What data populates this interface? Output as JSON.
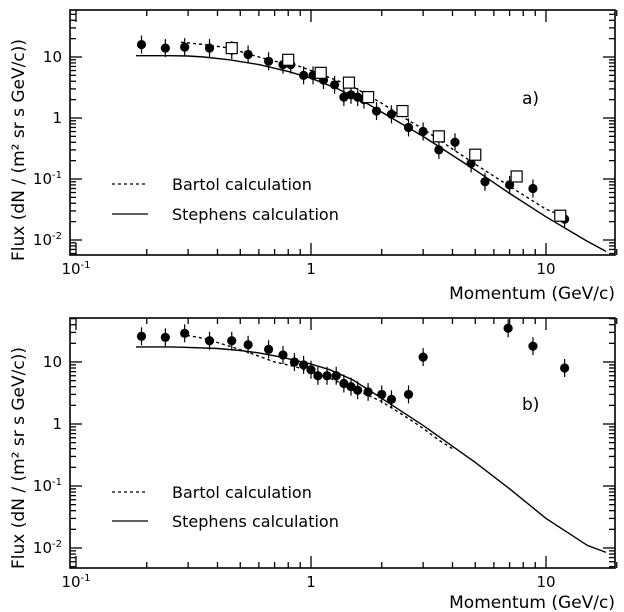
{
  "chart_data": [
    {
      "type": "scatter",
      "panel_label": "a)",
      "xlabel": "Momentum (GeV/c)",
      "ylabel": "Flux (dN / (m² sr s GeV/c))",
      "xscale": "log",
      "yscale": "log",
      "xlim": [
        0.1,
        20
      ],
      "ylim": [
        0.01,
        50
      ],
      "x_ticks": [
        "10-1",
        "1",
        "10"
      ],
      "y_ticks": [
        "10-2",
        "10-1",
        "1",
        "10"
      ],
      "legend": {
        "placement": "bottom-left",
        "entries": [
          {
            "label": "Bartol calculation",
            "style": "dashed"
          },
          {
            "label": "Stephens calculation",
            "style": "solid"
          }
        ]
      },
      "series": [
        {
          "name": "Bartol calculation",
          "kind": "line",
          "style": "dashed",
          "x": [
            0.28,
            0.35,
            0.45,
            0.55,
            0.7,
            0.85,
            1.0,
            1.2,
            1.5,
            2.0,
            2.5,
            3.0,
            4.0,
            5.0,
            7.0,
            10.0,
            12.0
          ],
          "y": [
            17.5,
            16.0,
            14.0,
            11.0,
            8.5,
            7.5,
            6.0,
            4.6,
            3.3,
            1.75,
            1.0,
            0.66,
            0.31,
            0.175,
            0.076,
            0.032,
            0.024
          ]
        },
        {
          "name": "Stephens calculation",
          "kind": "line",
          "style": "solid",
          "x": [
            0.18,
            0.25,
            0.3,
            0.35,
            0.45,
            0.6,
            0.8,
            1.0,
            1.3,
            1.7,
            2.0,
            3.0,
            5.0,
            7.0,
            10.0,
            15.0,
            18.0
          ],
          "y": [
            10.5,
            10.5,
            10.4,
            10.0,
            9.0,
            7.5,
            5.8,
            4.5,
            3.0,
            1.8,
            1.25,
            0.5,
            0.14,
            0.058,
            0.024,
            0.0095,
            0.0065
          ]
        },
        {
          "kind": "points",
          "marker": "filled-circle",
          "x": [
            0.19,
            0.24,
            0.29,
            0.37,
            0.46,
            0.54,
            0.66,
            0.76,
            0.82,
            0.93,
            1.02,
            1.13,
            1.26,
            1.38,
            1.48,
            1.58,
            1.68,
            1.9,
            2.2,
            2.6,
            3.0,
            3.5,
            4.1,
            4.8,
            5.5,
            7.0,
            8.8,
            12.0
          ],
          "y": [
            16,
            14,
            14.5,
            14,
            13,
            11,
            8.5,
            7.5,
            7.5,
            5.0,
            5.0,
            4.2,
            3.5,
            2.2,
            2.4,
            2.2,
            2.0,
            1.3,
            1.15,
            0.7,
            0.6,
            0.3,
            0.4,
            0.18,
            0.09,
            0.08,
            0.07,
            0.022
          ]
        },
        {
          "kind": "points",
          "marker": "open-square",
          "x": [
            0.46,
            0.8,
            1.1,
            1.45,
            1.75,
            2.45,
            3.5,
            5.0,
            7.5,
            11.5
          ],
          "y": [
            14,
            9,
            5.5,
            3.8,
            2.2,
            1.3,
            0.5,
            0.25,
            0.11,
            0.025
          ]
        }
      ]
    },
    {
      "type": "scatter",
      "panel_label": "b)",
      "xlabel": "Momentum (GeV/c)",
      "ylabel": "Flux (dN / (m² sr s GeV/c))",
      "xscale": "log",
      "yscale": "log",
      "xlim": [
        0.1,
        20
      ],
      "ylim": [
        0.01,
        50
      ],
      "x_ticks": [
        "10-1",
        "1",
        "10"
      ],
      "y_ticks": [
        "10-2",
        "10-1",
        "1",
        "10"
      ],
      "legend": {
        "placement": "bottom-left",
        "entries": [
          {
            "label": "Bartol calculation",
            "style": "dashed"
          },
          {
            "label": "Stephens calculation",
            "style": "solid"
          }
        ]
      },
      "series": [
        {
          "name": "Bartol calculation",
          "kind": "line",
          "style": "dashed",
          "x": [
            0.28,
            0.35,
            0.45,
            0.55,
            0.7,
            0.85,
            1.0,
            1.2,
            1.5,
            2.0,
            2.5,
            3.0,
            3.5,
            4.0
          ],
          "y": [
            28,
            24,
            18,
            14,
            10,
            8.5,
            7.0,
            5.5,
            3.8,
            2.3,
            1.35,
            0.85,
            0.55,
            0.4
          ]
        },
        {
          "name": "Stephens calculation",
          "kind": "line",
          "style": "solid",
          "x": [
            0.18,
            0.25,
            0.3,
            0.4,
            0.5,
            0.6,
            0.7,
            0.8,
            1.0,
            1.2,
            1.5,
            2.0,
            3.0,
            5.0,
            7.0,
            10.0,
            15.0,
            18.0
          ],
          "y": [
            17.5,
            17.5,
            17.2,
            16.5,
            15.3,
            14.0,
            12.6,
            11.3,
            9.3,
            7.5,
            5.2,
            2.6,
            0.95,
            0.24,
            0.09,
            0.03,
            0.011,
            0.0085
          ]
        },
        {
          "kind": "points",
          "marker": "filled-circle",
          "x": [
            0.19,
            0.24,
            0.29,
            0.37,
            0.46,
            0.54,
            0.66,
            0.76,
            0.85,
            0.93,
            1.0,
            1.07,
            1.17,
            1.28,
            1.38,
            1.48,
            1.58,
            1.75,
            2.0,
            2.2,
            2.6,
            3.0,
            6.9,
            8.8,
            12.0
          ],
          "y": [
            26,
            25,
            29,
            22,
            22,
            19,
            16,
            13,
            10,
            9.0,
            7.5,
            6.0,
            6.0,
            6.0,
            4.5,
            4.0,
            3.5,
            3.3,
            3.0,
            2.5,
            3.0,
            12,
            35,
            18,
            8
          ]
        }
      ]
    }
  ]
}
